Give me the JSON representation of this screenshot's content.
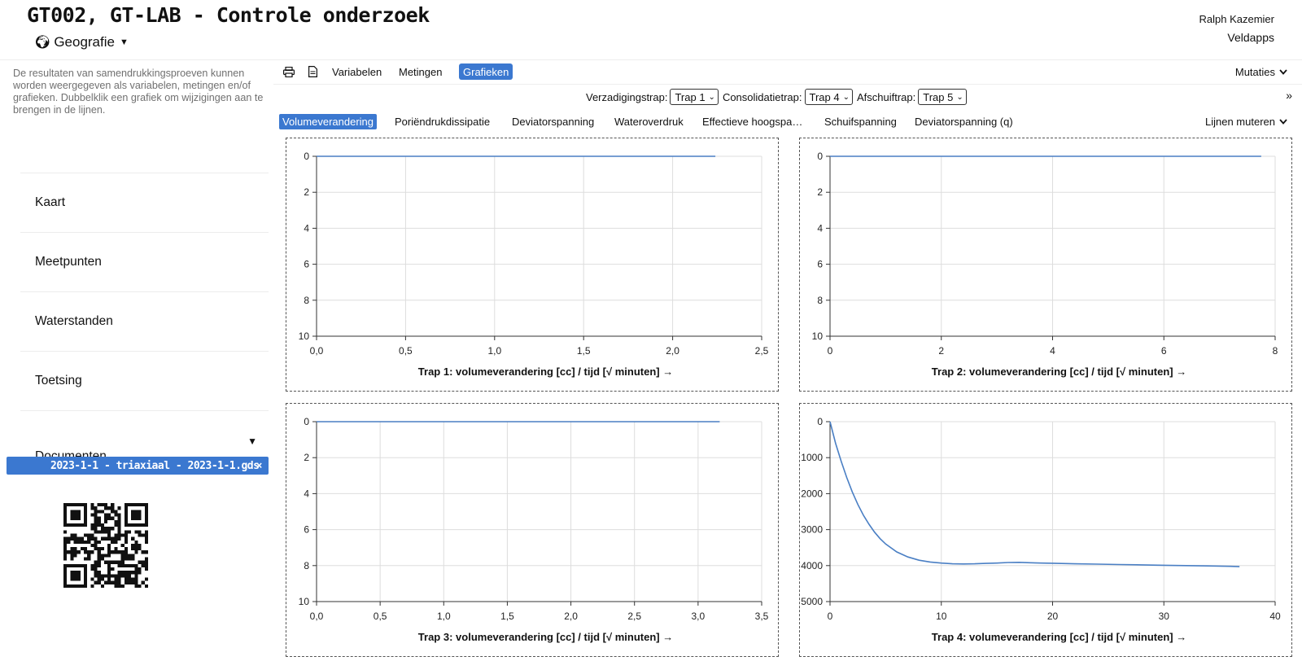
{
  "header": {
    "title": "GT002, GT-LAB - Controle onderzoek",
    "geo_label": "Geografie",
    "user": "Ralph Kazemier",
    "org": "Veldapps"
  },
  "sidebar": {
    "description": "De resultaten van samendrukkingsproeven kunnen worden weergegeven als variabelen, metingen en/of grafieken. Dubbelklik een grafiek om wijzigingen aan te brengen in de lijnen.",
    "items": [
      {
        "label": "Kaart"
      },
      {
        "label": "Meetpunten"
      },
      {
        "label": "Waterstanden"
      },
      {
        "label": "Toetsing"
      },
      {
        "label": "Documenten"
      }
    ],
    "document": "2023-1-1 - triaxiaal - 2023-1-1.gds",
    "document_close": "×"
  },
  "toolbar": {
    "print_icon": "printer-icon",
    "doc_icon": "document-icon",
    "tabs": [
      "Variabelen",
      "Metingen",
      "Grafieken"
    ],
    "active_tab": "Grafieken",
    "mutaties": "Mutaties"
  },
  "selectors": {
    "verzadiging_label": "Verzadigingstrap:",
    "verzadiging_value": "Trap 1",
    "consolidatie_label": "Consolidatietrap:",
    "consolidatie_value": "Trap 4",
    "afschuif_label": "Afschuiftrap:",
    "afschuif_value": "Trap 5",
    "more": "»"
  },
  "graph_tabs": {
    "items": [
      "Volumeverandering",
      "Poriëndrukdissipatie",
      "Deviatorspanning",
      "Wateroverdruk",
      "Effectieve hoogspa…",
      "Schuifspanning",
      "Deviatorspanning (q)"
    ],
    "active": "Volumeverandering",
    "lijnen": "Lijnen muteren"
  },
  "chart_data": [
    {
      "type": "line",
      "title": "Trap 1: volumeverandering [cc] / tijd [√ minuten] →",
      "x_ticks": [
        "0,0",
        "0,5",
        "1,0",
        "1,5",
        "2,0",
        "2,5"
      ],
      "y_ticks": [
        "0",
        "2",
        "4",
        "6",
        "8",
        "10"
      ],
      "xlim": [
        0,
        2.5
      ],
      "ylim": [
        0,
        10
      ],
      "y_inverted": true,
      "grid": true,
      "series": [
        {
          "x": [
            0,
            2.24
          ],
          "y": [
            0,
            0
          ]
        }
      ]
    },
    {
      "type": "line",
      "title": "Trap 2: volumeverandering [cc] / tijd [√ minuten] →",
      "x_ticks": [
        "0",
        "2",
        "4",
        "6",
        "8"
      ],
      "y_ticks": [
        "0",
        "2",
        "4",
        "6",
        "8",
        "10"
      ],
      "xlim": [
        0,
        8
      ],
      "ylim": [
        0,
        10
      ],
      "y_inverted": true,
      "grid": true,
      "series": [
        {
          "x": [
            0,
            7.75
          ],
          "y": [
            0,
            0
          ]
        }
      ]
    },
    {
      "type": "line",
      "title": "Trap 3: volumeverandering [cc] / tijd [√ minuten] →",
      "x_ticks": [
        "0,0",
        "0,5",
        "1,0",
        "1,5",
        "2,0",
        "2,5",
        "3,0",
        "3,5"
      ],
      "y_ticks": [
        "0",
        "2",
        "4",
        "6",
        "8",
        "10"
      ],
      "xlim": [
        0,
        3.5
      ],
      "ylim": [
        0,
        10
      ],
      "y_inverted": true,
      "grid": true,
      "series": [
        {
          "x": [
            0,
            3.17
          ],
          "y": [
            0,
            0
          ]
        }
      ]
    },
    {
      "type": "line",
      "title": "Trap 4: volumeverandering [cc] / tijd [√ minuten] →",
      "x_ticks": [
        "0",
        "10",
        "20",
        "30",
        "40"
      ],
      "y_ticks": [
        "0",
        "1000",
        "2000",
        "3000",
        "4000",
        "5000"
      ],
      "xlim": [
        0,
        40
      ],
      "ylim": [
        0,
        5000
      ],
      "y_inverted": true,
      "grid": true,
      "series": [
        {
          "x": [
            0,
            0.5,
            1,
            1.5,
            2,
            2.5,
            3,
            3.5,
            4,
            4.5,
            5,
            6,
            7,
            8,
            9,
            10,
            11,
            12,
            13,
            14,
            15,
            16,
            17,
            18,
            19,
            20,
            22,
            24,
            26,
            28,
            30,
            32,
            34,
            36,
            36.8
          ],
          "y": [
            0,
            600,
            1100,
            1550,
            1950,
            2300,
            2600,
            2850,
            3070,
            3250,
            3400,
            3620,
            3760,
            3850,
            3900,
            3930,
            3950,
            3955,
            3950,
            3940,
            3930,
            3915,
            3910,
            3920,
            3930,
            3935,
            3950,
            3960,
            3970,
            3980,
            3990,
            4000,
            4010,
            4020,
            4030
          ]
        }
      ]
    }
  ],
  "colors": {
    "accent": "#3b78d0",
    "line": "#4a7fc4",
    "grid": "#dddddd"
  }
}
